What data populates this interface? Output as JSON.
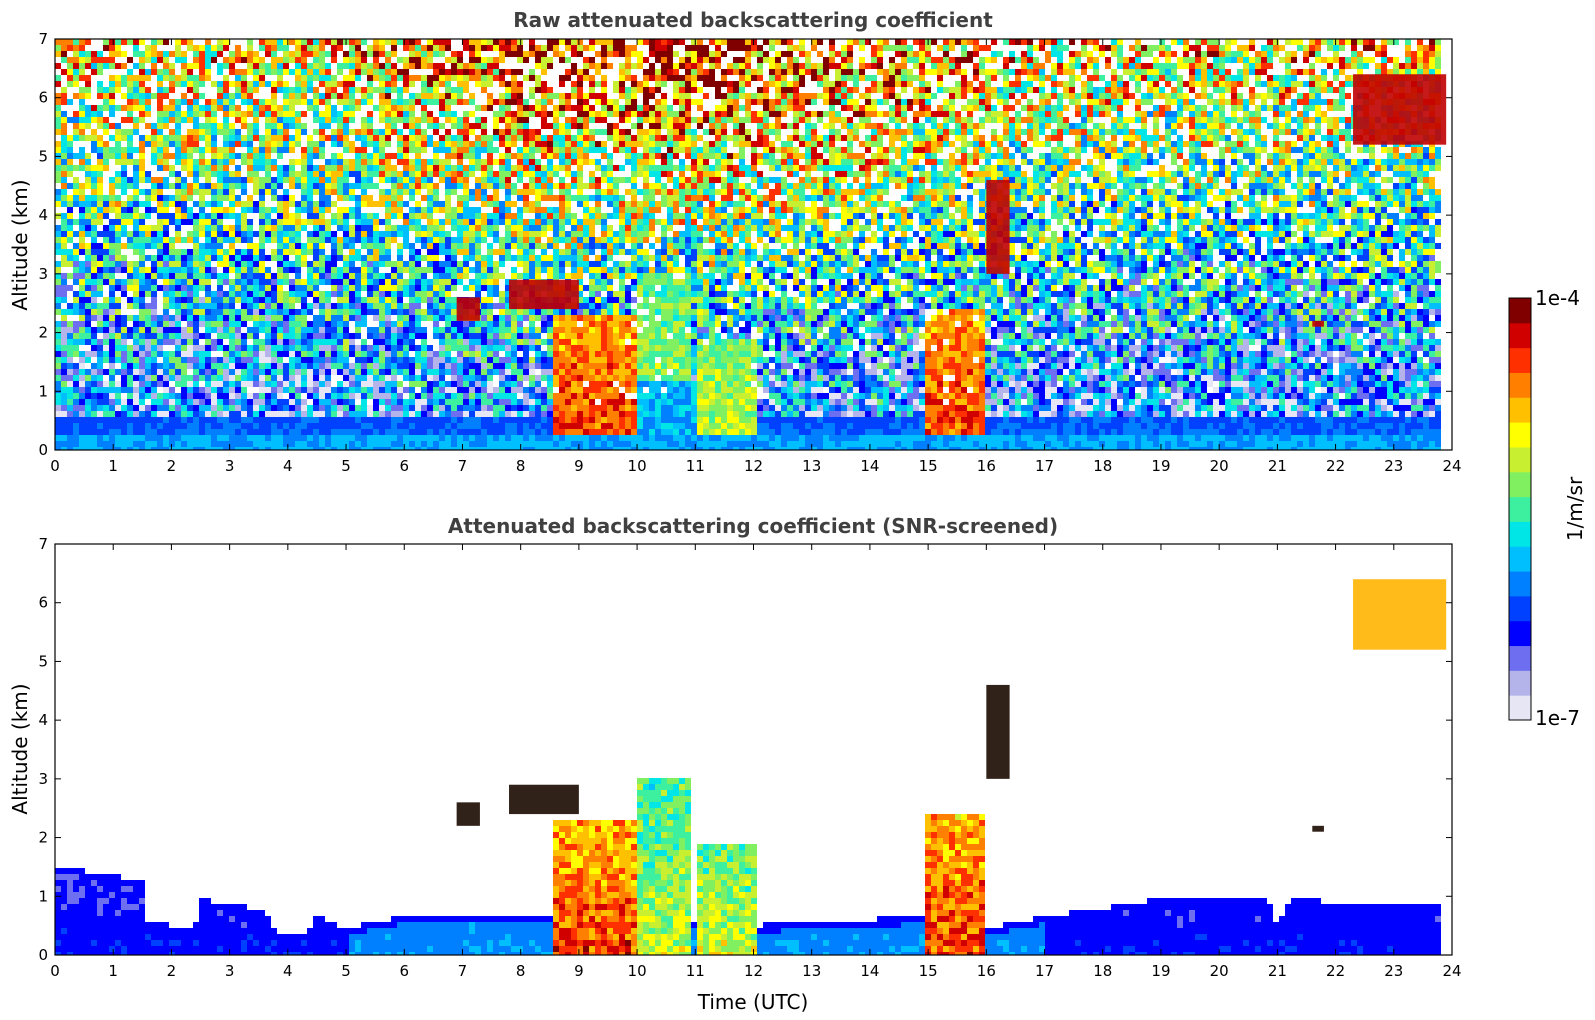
{
  "chart_data": [
    {
      "type": "heatmap",
      "title": "Raw attenuated backscattering coefficient",
      "xlabel": "",
      "ylabel": "Altitude (km)",
      "xlim": [
        0,
        24
      ],
      "ylim": [
        0,
        7
      ],
      "xticks": [
        "0",
        "1",
        "2",
        "3",
        "4",
        "5",
        "6",
        "7",
        "8",
        "9",
        "10",
        "11",
        "12",
        "13",
        "14",
        "15",
        "16",
        "17",
        "18",
        "19",
        "20",
        "21",
        "22",
        "23",
        "24"
      ],
      "yticks": [
        "0",
        "1",
        "2",
        "3",
        "4",
        "5",
        "6",
        "7"
      ],
      "features": [
        {
          "kind": "cloud-column",
          "t_start": 8.6,
          "t_end": 10.0,
          "alt_top": 2.3,
          "level": "high"
        },
        {
          "kind": "cloud-column",
          "t_start": 10.0,
          "t_end": 10.9,
          "alt_top": 3.2,
          "level": "medium"
        },
        {
          "kind": "cloud-column",
          "t_start": 11.0,
          "t_end": 12.0,
          "alt_top": 1.9,
          "level": "medium"
        },
        {
          "kind": "cloud-column",
          "t_start": 14.9,
          "t_end": 16.0,
          "alt_top": 2.4,
          "level": "high"
        },
        {
          "kind": "cloud-layer",
          "t_start": 7.8,
          "t_end": 9.0,
          "alt_bottom": 2.4,
          "alt_top": 2.9
        },
        {
          "kind": "cloud-layer",
          "t_start": 6.9,
          "t_end": 7.3,
          "alt_bottom": 2.2,
          "alt_top": 2.6
        },
        {
          "kind": "cloud-layer",
          "t_start": 16.0,
          "t_end": 16.4,
          "alt_bottom": 3.0,
          "alt_top": 4.6
        },
        {
          "kind": "cloud-layer",
          "t_start": 21.6,
          "t_end": 21.8,
          "alt_bottom": 2.1,
          "alt_top": 2.2
        },
        {
          "kind": "cloud-layer",
          "t_start": 22.3,
          "t_end": 23.9,
          "alt_bottom": 5.2,
          "alt_top": 6.4
        }
      ]
    },
    {
      "type": "heatmap",
      "title": "Attenuated backscattering coefficient (SNR-screened)",
      "xlabel": "Time (UTC)",
      "ylabel": "Altitude (km)",
      "xlim": [
        0,
        24
      ],
      "ylim": [
        0,
        7
      ],
      "xticks": [
        "0",
        "1",
        "2",
        "3",
        "4",
        "5",
        "6",
        "7",
        "8",
        "9",
        "10",
        "11",
        "12",
        "13",
        "14",
        "15",
        "16",
        "17",
        "18",
        "19",
        "20",
        "21",
        "22",
        "23",
        "24"
      ],
      "yticks": [
        "0",
        "1",
        "2",
        "3",
        "4",
        "5",
        "6",
        "7"
      ],
      "boundary_layer_top_km": [
        [
          0,
          1.55
        ],
        [
          1.5,
          1.3
        ],
        [
          1.6,
          0.6
        ],
        [
          2.4,
          0.5
        ],
        [
          2.5,
          1.0
        ],
        [
          3.6,
          0.8
        ],
        [
          3.8,
          0.45
        ],
        [
          4.3,
          0.45
        ],
        [
          4.5,
          0.7
        ],
        [
          5.0,
          0.5
        ],
        [
          6.0,
          0.7
        ],
        [
          8.6,
          0.7
        ],
        [
          12.0,
          0.55
        ],
        [
          14.9,
          0.7
        ],
        [
          16.0,
          0.5
        ],
        [
          17.0,
          0.7
        ],
        [
          19.0,
          1.0
        ],
        [
          20.8,
          1.05
        ],
        [
          21.0,
          0.5
        ],
        [
          21.2,
          1.0
        ],
        [
          22.0,
          0.95
        ],
        [
          23.8,
          0.9
        ]
      ]
    }
  ],
  "colorbar": {
    "label": "1/m/sr",
    "min_label": "1e-7",
    "max_label": "1e-4",
    "colormap": [
      "#e6e6f5",
      "#b4b4eb",
      "#6e6ef0",
      "#0000ff",
      "#0040ff",
      "#0080ff",
      "#00bfff",
      "#00e5e5",
      "#3cf0a0",
      "#80f060",
      "#c8f030",
      "#ffff00",
      "#ffc000",
      "#ff8000",
      "#ff3000",
      "#d00000",
      "#800000"
    ]
  }
}
